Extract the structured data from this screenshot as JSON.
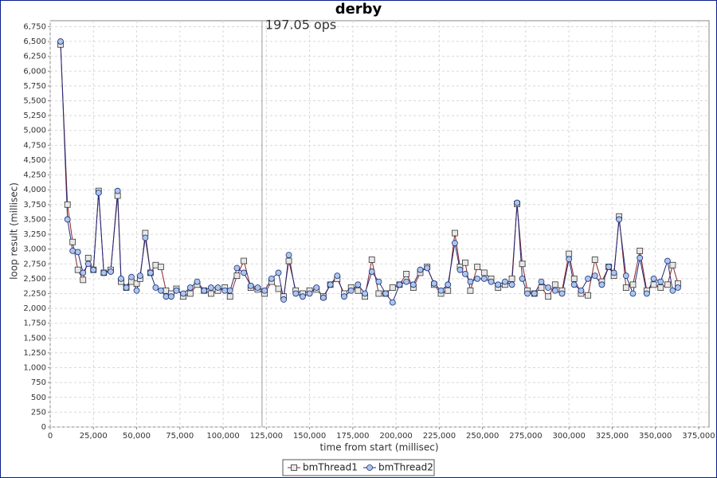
{
  "chart_data": {
    "type": "line",
    "title": "derby",
    "x_label": "time from start (millisec)",
    "y_label": "loop result (millisec)",
    "x": [
      6000,
      10000,
      13000,
      16000,
      19000,
      22000,
      25000,
      28000,
      31000,
      35000,
      39000,
      41000,
      44000,
      47000,
      50000,
      52000,
      55000,
      58000,
      61000,
      64000,
      67000,
      70000,
      73000,
      77000,
      81000,
      85000,
      89000,
      93000,
      97000,
      101000,
      104000,
      108000,
      112000,
      116000,
      120000,
      124000,
      128000,
      132000,
      135000,
      138000,
      142000,
      146000,
      150000,
      154000,
      158000,
      162000,
      166000,
      170000,
      174000,
      178000,
      182000,
      186000,
      190000,
      194000,
      198000,
      202000,
      206000,
      210000,
      214000,
      218000,
      222000,
      226000,
      230000,
      234000,
      237000,
      240000,
      243000,
      247000,
      251000,
      255000,
      259000,
      263000,
      267000,
      270000,
      273000,
      276000,
      280000,
      284000,
      288000,
      292000,
      296000,
      300000,
      303000,
      307000,
      311000,
      315000,
      319000,
      323000,
      326000,
      329000,
      333000,
      337000,
      341000,
      345000,
      349000,
      353000,
      357000,
      360000,
      363000
    ],
    "series": [
      {
        "name": "bmThread1",
        "color": "#8b2323",
        "marker": "square",
        "marker_fill": "#e8e8e8",
        "values": [
          6450,
          3750,
          3120,
          2650,
          2480,
          2850,
          2650,
          3980,
          2600,
          2650,
          3900,
          2450,
          2350,
          2450,
          2420,
          2500,
          3270,
          2600,
          2730,
          2700,
          2300,
          2250,
          2330,
          2200,
          2250,
          2400,
          2300,
          2250,
          2300,
          2350,
          2200,
          2550,
          2800,
          2350,
          2320,
          2250,
          2450,
          2330,
          2200,
          2800,
          2300,
          2250,
          2300,
          2320,
          2200,
          2400,
          2500,
          2250,
          2350,
          2300,
          2200,
          2820,
          2250,
          2250,
          2350,
          2400,
          2580,
          2350,
          2600,
          2700,
          2400,
          2250,
          2300,
          3270,
          2700,
          2770,
          2300,
          2700,
          2600,
          2500,
          2350,
          2400,
          2500,
          3760,
          2750,
          2300,
          2250,
          2350,
          2200,
          2400,
          2300,
          2920,
          2500,
          2250,
          2220,
          2820,
          2450,
          2700,
          2550,
          3550,
          2350,
          2400,
          2970,
          2300,
          2400,
          2350,
          2400,
          2730,
          2420
        ]
      },
      {
        "name": "bmThread2",
        "color": "#1f2a78",
        "marker": "circle",
        "marker_fill": "#a9c8ea",
        "values": [
          6500,
          3500,
          2970,
          2950,
          2600,
          2750,
          2650,
          3950,
          2600,
          2620,
          3980,
          2500,
          2350,
          2530,
          2300,
          2550,
          3190,
          2600,
          2350,
          2300,
          2200,
          2200,
          2300,
          2250,
          2350,
          2450,
          2300,
          2350,
          2350,
          2300,
          2300,
          2680,
          2600,
          2380,
          2350,
          2300,
          2500,
          2600,
          2150,
          2900,
          2250,
          2200,
          2250,
          2350,
          2180,
          2400,
          2550,
          2200,
          2300,
          2400,
          2250,
          2620,
          2450,
          2250,
          2100,
          2400,
          2450,
          2400,
          2650,
          2680,
          2420,
          2300,
          2400,
          3100,
          2650,
          2580,
          2450,
          2500,
          2500,
          2450,
          2400,
          2450,
          2400,
          3780,
          2500,
          2250,
          2250,
          2450,
          2350,
          2300,
          2250,
          2830,
          2400,
          2300,
          2500,
          2550,
          2400,
          2700,
          2600,
          3500,
          2550,
          2250,
          2850,
          2250,
          2500,
          2450,
          2800,
          2300,
          2350
        ]
      }
    ],
    "xlim": [
      0,
      381000
    ],
    "ylim": [
      0,
      6850
    ],
    "xticks": [
      0,
      {
        "value": 25000,
        "label": "25,000"
      },
      {
        "value": 50000,
        "label": "50,000"
      },
      {
        "value": 75000,
        "label": "75,000"
      },
      {
        "value": 100000,
        "label": "100,000"
      },
      {
        "value": 125000,
        "label": "125,000"
      },
      {
        "value": 150000,
        "label": "150,000"
      },
      {
        "value": 175000,
        "label": "175,000"
      },
      {
        "value": 200000,
        "label": "200,000"
      },
      {
        "value": 225000,
        "label": "225,000"
      },
      {
        "value": 250000,
        "label": "250,000"
      },
      {
        "value": 275000,
        "label": "275,000"
      },
      {
        "value": 300000,
        "label": "300,000"
      },
      {
        "value": 325000,
        "label": "325,000"
      },
      {
        "value": 350000,
        "label": "350,000"
      },
      {
        "value": 375000,
        "label": "375,000"
      }
    ],
    "yticks": [
      0,
      250,
      500,
      750,
      {
        "value": 1000,
        "label": "1,000"
      },
      {
        "value": 1250,
        "label": "1,250"
      },
      {
        "value": 1500,
        "label": "1,500"
      },
      {
        "value": 1750,
        "label": "1,750"
      },
      {
        "value": 2000,
        "label": "2,000"
      },
      {
        "value": 2250,
        "label": "2,250"
      },
      {
        "value": 2500,
        "label": "2,500"
      },
      {
        "value": 2750,
        "label": "2,750"
      },
      {
        "value": 3000,
        "label": "3,000"
      },
      {
        "value": 3250,
        "label": "3,250"
      },
      {
        "value": 3500,
        "label": "3,500"
      },
      {
        "value": 3750,
        "label": "3,750"
      },
      {
        "value": 4000,
        "label": "4,000"
      },
      {
        "value": 4250,
        "label": "4,250"
      },
      {
        "value": 4500,
        "label": "4,500"
      },
      {
        "value": 4750,
        "label": "4,750"
      },
      {
        "value": 5000,
        "label": "5,000"
      },
      {
        "value": 5250,
        "label": "5,250"
      },
      {
        "value": 5500,
        "label": "5,500"
      },
      {
        "value": 5750,
        "label": "5,750"
      },
      {
        "value": 6000,
        "label": "6,000"
      },
      {
        "value": 6250,
        "label": "6,250"
      },
      {
        "value": 6500,
        "label": "6,500"
      },
      {
        "value": 6750,
        "label": "6,750"
      }
    ],
    "grid": true,
    "annotations": [
      {
        "x": 122500,
        "label": "197.05 ops"
      }
    ],
    "legend": "bottom"
  }
}
